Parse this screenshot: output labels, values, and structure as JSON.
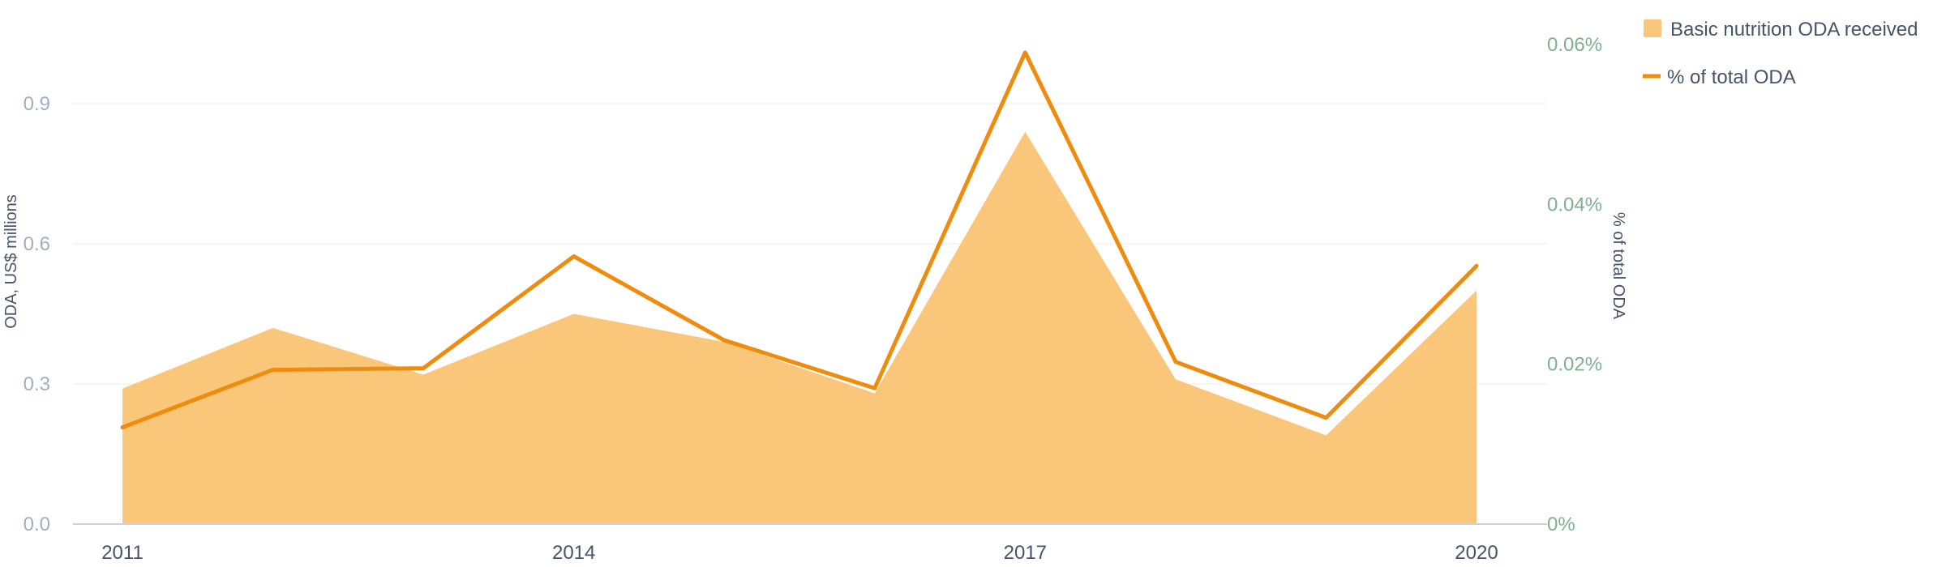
{
  "chart_data": {
    "type": "area",
    "x": [
      2011,
      2012,
      2013,
      2014,
      2015,
      2016,
      2017,
      2018,
      2019,
      2020
    ],
    "x_tick_labels": [
      "2011",
      "2014",
      "2017",
      "2020"
    ],
    "x_tick_values": [
      2011,
      2014,
      2017,
      2020
    ],
    "series": [
      {
        "name": "Basic nutrition ODA received",
        "kind": "area",
        "axis": "left",
        "values": [
          0.29,
          0.42,
          0.32,
          0.45,
          0.39,
          0.28,
          0.84,
          0.31,
          0.19,
          0.5
        ],
        "color": "#fac77a"
      },
      {
        "name": "% of total ODA",
        "kind": "line",
        "axis": "right",
        "values": [
          0.0121,
          0.0193,
          0.0195,
          0.0335,
          0.023,
          0.017,
          0.059,
          0.0203,
          0.0133,
          0.0323
        ],
        "color": "#ef8c0e"
      }
    ],
    "left_axis": {
      "label": "ODA, US$ millions",
      "range": [
        0,
        1.07
      ],
      "ticks": [
        0.0,
        0.3,
        0.6,
        0.9
      ],
      "tick_labels": [
        "0.0",
        "0.3",
        "0.6",
        "0.9"
      ]
    },
    "right_axis": {
      "label": "% of total ODA",
      "range": [
        0,
        0.06
      ],
      "ticks": [
        0,
        0.02,
        0.04,
        0.06
      ],
      "tick_labels": [
        "0%",
        "0.02%",
        "0.04%",
        "0.06%"
      ]
    },
    "legend": {
      "placement": "top-right",
      "items": [
        "Basic nutrition ODA received",
        "% of total ODA"
      ]
    },
    "grid": true
  }
}
